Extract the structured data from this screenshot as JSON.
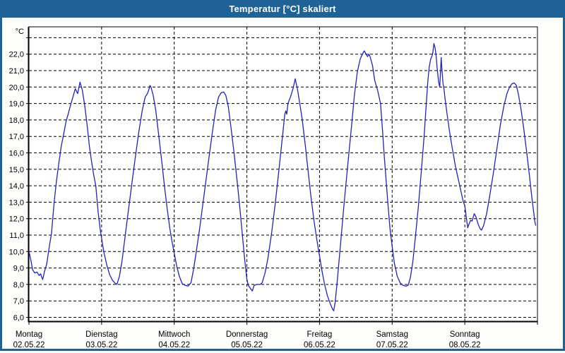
{
  "window": {
    "title": "Temperatur [°C] skaliert"
  },
  "colors": {
    "titlebar": "#1e6296",
    "frame": "#1e6296",
    "plot_background": "#ffffff",
    "curve": "#2222bb",
    "grid": "#000000",
    "text": "#000000"
  },
  "chart_data": {
    "type": "line",
    "title": "Temperatur [°C] skaliert",
    "legend": "none",
    "grid": "dashed black, 1 °C horizontal spacing, vertical line at each day boundary",
    "y_axis": {
      "unit_label": "°C",
      "min": 6.0,
      "max": 23.0,
      "step": 1.0,
      "tick_labels": [
        "6,0",
        "7,0",
        "8,0",
        "9,0",
        "10,0",
        "11,0",
        "12,0",
        "13,0",
        "14,0",
        "15,0",
        "16,0",
        "17,0",
        "18,0",
        "19,0",
        "20,0",
        "21,0",
        "22,0"
      ],
      "unlabeled_top_gridline": 23.0
    },
    "x_axis": {
      "span_days": 7,
      "days": [
        {
          "name": "Montag",
          "date": "02.05.22"
        },
        {
          "name": "Dienstag",
          "date": "03.05.22"
        },
        {
          "name": "Mittwoch",
          "date": "04.05.22"
        },
        {
          "name": "Donnerstag",
          "date": "05.05.22"
        },
        {
          "name": "Freitag",
          "date": "06.05.22"
        },
        {
          "name": "Samstag",
          "date": "07.05.22"
        },
        {
          "name": "Sonntag",
          "date": "08.05.22"
        }
      ]
    },
    "series": [
      {
        "name": "Temperatur",
        "color": "#2222bb",
        "x_unit": "days since Montag 02.05.22 00:00",
        "y_unit": "°C",
        "points": [
          [
            0.0,
            10.0
          ],
          [
            0.025,
            9.5
          ],
          [
            0.05,
            8.9
          ],
          [
            0.08,
            8.7
          ],
          [
            0.11,
            8.75
          ],
          [
            0.14,
            8.55
          ],
          [
            0.16,
            8.65
          ],
          [
            0.175,
            8.45
          ],
          [
            0.19,
            8.3
          ],
          [
            0.215,
            8.8
          ],
          [
            0.245,
            9.25
          ],
          [
            0.28,
            10.3
          ],
          [
            0.31,
            11.1
          ],
          [
            0.347,
            13.0
          ],
          [
            0.379,
            14.3
          ],
          [
            0.412,
            15.4
          ],
          [
            0.444,
            16.4
          ],
          [
            0.476,
            17.1
          ],
          [
            0.51,
            17.9
          ],
          [
            0.54,
            18.35
          ],
          [
            0.573,
            18.9
          ],
          [
            0.606,
            19.4
          ],
          [
            0.638,
            19.9
          ],
          [
            0.67,
            19.6
          ],
          [
            0.703,
            20.3
          ],
          [
            0.735,
            19.8
          ],
          [
            0.767,
            18.9
          ],
          [
            0.8,
            17.7
          ],
          [
            0.832,
            16.4
          ],
          [
            0.864,
            15.4
          ],
          [
            0.89,
            14.7
          ],
          [
            0.92,
            14.0
          ],
          [
            0.955,
            12.3
          ],
          [
            0.985,
            11.2
          ],
          [
            1.0,
            10.8
          ],
          [
            1.03,
            10.0
          ],
          [
            1.07,
            9.2
          ],
          [
            1.11,
            8.6
          ],
          [
            1.15,
            8.25
          ],
          [
            1.18,
            8.1
          ],
          [
            1.21,
            8.0
          ],
          [
            1.245,
            8.5
          ],
          [
            1.28,
            9.4
          ],
          [
            1.32,
            10.8
          ],
          [
            1.36,
            12.2
          ],
          [
            1.41,
            13.9
          ],
          [
            1.46,
            15.6
          ],
          [
            1.51,
            17.2
          ],
          [
            1.56,
            18.6
          ],
          [
            1.6,
            19.4
          ],
          [
            1.63,
            19.6
          ],
          [
            1.655,
            19.9
          ],
          [
            1.665,
            20.1
          ],
          [
            1.68,
            20.0
          ],
          [
            1.71,
            19.5
          ],
          [
            1.745,
            18.6
          ],
          [
            1.78,
            17.3
          ],
          [
            1.82,
            15.8
          ],
          [
            1.86,
            14.2
          ],
          [
            1.9,
            12.7
          ],
          [
            1.94,
            11.4
          ],
          [
            1.97,
            10.6
          ],
          [
            2.0,
            9.9
          ],
          [
            2.035,
            9.1
          ],
          [
            2.07,
            8.5
          ],
          [
            2.11,
            8.05
          ],
          [
            2.15,
            7.95
          ],
          [
            2.19,
            7.9
          ],
          [
            2.23,
            8.1
          ],
          [
            2.265,
            8.9
          ],
          [
            2.3,
            9.9
          ],
          [
            2.35,
            11.4
          ],
          [
            2.4,
            13.1
          ],
          [
            2.46,
            15.1
          ],
          [
            2.52,
            17.1
          ],
          [
            2.57,
            18.6
          ],
          [
            2.61,
            19.4
          ],
          [
            2.645,
            19.65
          ],
          [
            2.68,
            19.7
          ],
          [
            2.71,
            19.5
          ],
          [
            2.745,
            18.8
          ],
          [
            2.78,
            17.6
          ],
          [
            2.82,
            16.1
          ],
          [
            2.86,
            14.5
          ],
          [
            2.9,
            12.8
          ],
          [
            2.94,
            10.9
          ],
          [
            2.97,
            9.5
          ],
          [
            3.0,
            8.3
          ],
          [
            3.02,
            7.95
          ],
          [
            3.05,
            7.75
          ],
          [
            3.075,
            7.6
          ],
          [
            3.1,
            7.95
          ],
          [
            3.14,
            8.0
          ],
          [
            3.18,
            8.0
          ],
          [
            3.21,
            8.1
          ],
          [
            3.25,
            8.7
          ],
          [
            3.29,
            9.6
          ],
          [
            3.34,
            11.1
          ],
          [
            3.39,
            12.9
          ],
          [
            3.44,
            14.9
          ],
          [
            3.49,
            17.0
          ],
          [
            3.52,
            18.3
          ],
          [
            3.535,
            18.55
          ],
          [
            3.55,
            18.35
          ],
          [
            3.565,
            19.0
          ],
          [
            3.6,
            19.4
          ],
          [
            3.635,
            19.9
          ],
          [
            3.665,
            20.5
          ],
          [
            3.695,
            19.9
          ],
          [
            3.725,
            19.1
          ],
          [
            3.76,
            18.1
          ],
          [
            3.8,
            16.6
          ],
          [
            3.84,
            15.0
          ],
          [
            3.88,
            13.4
          ],
          [
            3.92,
            12.0
          ],
          [
            3.96,
            10.8
          ],
          [
            4.0,
            9.75
          ],
          [
            4.035,
            8.8
          ],
          [
            4.07,
            8.0
          ],
          [
            4.11,
            7.3
          ],
          [
            4.15,
            6.8
          ],
          [
            4.18,
            6.5
          ],
          [
            4.195,
            6.4
          ],
          [
            4.215,
            6.9
          ],
          [
            4.24,
            8.0
          ],
          [
            4.27,
            9.5
          ],
          [
            4.3,
            11.0
          ],
          [
            4.34,
            13.0
          ],
          [
            4.39,
            15.3
          ],
          [
            4.44,
            17.6
          ],
          [
            4.48,
            19.5
          ],
          [
            4.52,
            20.9
          ],
          [
            4.56,
            21.7
          ],
          [
            4.59,
            22.0
          ],
          [
            4.615,
            22.2
          ],
          [
            4.64,
            22.0
          ],
          [
            4.66,
            21.85
          ],
          [
            4.68,
            22.0
          ],
          [
            4.7,
            21.8
          ],
          [
            4.73,
            21.3
          ],
          [
            4.76,
            20.4
          ],
          [
            4.8,
            19.8
          ],
          [
            4.84,
            19.0
          ],
          [
            4.865,
            17.5
          ],
          [
            4.89,
            15.85
          ],
          [
            4.94,
            13.0
          ],
          [
            4.97,
            11.4
          ],
          [
            5.0,
            10.3
          ],
          [
            5.03,
            9.3
          ],
          [
            5.07,
            8.5
          ],
          [
            5.11,
            8.1
          ],
          [
            5.15,
            7.95
          ],
          [
            5.19,
            7.9
          ],
          [
            5.22,
            7.95
          ],
          [
            5.25,
            8.4
          ],
          [
            5.285,
            9.4
          ],
          [
            5.32,
            10.9
          ],
          [
            5.36,
            12.7
          ],
          [
            5.4,
            14.8
          ],
          [
            5.44,
            17.0
          ],
          [
            5.47,
            19.0
          ],
          [
            5.49,
            20.3
          ],
          [
            5.51,
            21.2
          ],
          [
            5.53,
            21.7
          ],
          [
            5.55,
            21.9
          ],
          [
            5.56,
            22.1
          ],
          [
            5.575,
            22.65
          ],
          [
            5.59,
            22.4
          ],
          [
            5.605,
            21.9
          ],
          [
            5.62,
            21.1
          ],
          [
            5.64,
            20.3
          ],
          [
            5.655,
            20.0
          ],
          [
            5.665,
            20.9
          ],
          [
            5.675,
            21.8
          ],
          [
            5.685,
            21.1
          ],
          [
            5.7,
            20.2
          ],
          [
            5.71,
            20.0
          ],
          [
            5.725,
            19.4
          ],
          [
            5.755,
            18.4
          ],
          [
            5.79,
            17.3
          ],
          [
            5.83,
            16.2
          ],
          [
            5.87,
            15.2
          ],
          [
            5.91,
            14.4
          ],
          [
            5.95,
            13.6
          ],
          [
            5.98,
            13.0
          ],
          [
            6.0,
            12.8
          ],
          [
            6.02,
            12.1
          ],
          [
            6.04,
            11.45
          ],
          [
            6.06,
            11.7
          ],
          [
            6.08,
            11.9
          ],
          [
            6.1,
            11.85
          ],
          [
            6.13,
            12.3
          ],
          [
            6.155,
            12.1
          ],
          [
            6.18,
            11.7
          ],
          [
            6.21,
            11.4
          ],
          [
            6.23,
            11.3
          ],
          [
            6.26,
            11.6
          ],
          [
            6.3,
            12.3
          ],
          [
            6.34,
            13.3
          ],
          [
            6.39,
            14.7
          ],
          [
            6.44,
            16.2
          ],
          [
            6.49,
            17.7
          ],
          [
            6.54,
            18.9
          ],
          [
            6.58,
            19.6
          ],
          [
            6.615,
            20.0
          ],
          [
            6.65,
            20.2
          ],
          [
            6.68,
            20.25
          ],
          [
            6.71,
            20.1
          ],
          [
            6.74,
            19.5
          ],
          [
            6.775,
            18.6
          ],
          [
            6.81,
            17.5
          ],
          [
            6.85,
            16.1
          ],
          [
            6.89,
            14.6
          ],
          [
            6.925,
            13.2
          ],
          [
            6.95,
            12.3
          ],
          [
            6.965,
            11.8
          ],
          [
            6.975,
            11.6
          ]
        ]
      }
    ]
  }
}
